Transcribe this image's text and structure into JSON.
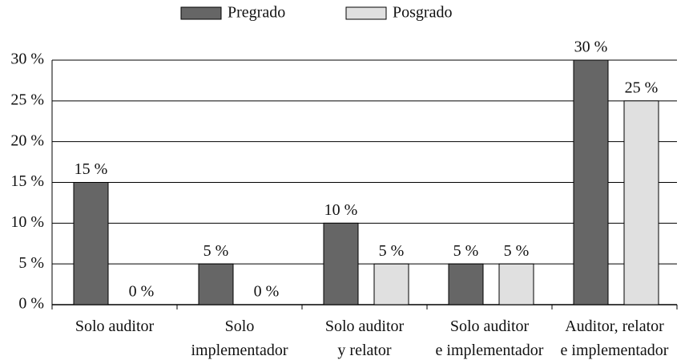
{
  "chart_data": {
    "type": "bar",
    "categories": [
      "Solo auditor",
      "Solo\nimplementador",
      "Solo auditor\ny relator",
      "Solo auditor\ne implementador",
      "Auditor, relator\ne implementador"
    ],
    "series": [
      {
        "name": "Pregrado",
        "color": "#666666",
        "values": [
          15,
          5,
          10,
          5,
          30
        ],
        "value_labels": [
          "15 %",
          "5 %",
          "10 %",
          "5 %",
          "30 %"
        ]
      },
      {
        "name": "Posgrado",
        "color": "#e0e0e0",
        "values": [
          0,
          0,
          5,
          5,
          25
        ],
        "value_labels": [
          "0 %",
          "0 %",
          "5 %",
          "5 %",
          "25 %"
        ]
      }
    ],
    "ylim": [
      0,
      30
    ],
    "yticks": [
      {
        "value": 0,
        "label": "0 %"
      },
      {
        "value": 5,
        "label": "5 %"
      },
      {
        "value": 10,
        "label": "10 %"
      },
      {
        "value": 15,
        "label": "15 %"
      },
      {
        "value": 20,
        "label": "20 %"
      },
      {
        "value": 25,
        "label": "25 %"
      },
      {
        "value": 30,
        "label": "30 %"
      }
    ],
    "grid": true,
    "legend": "top"
  }
}
